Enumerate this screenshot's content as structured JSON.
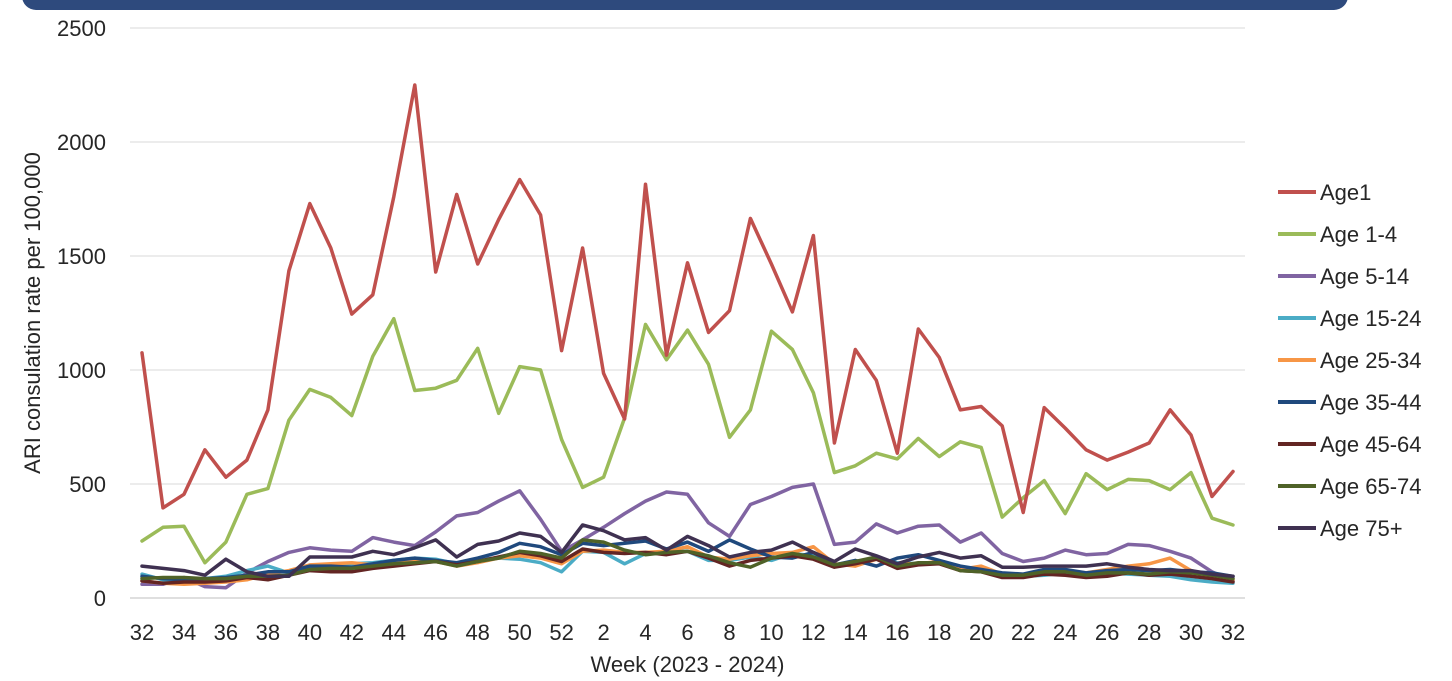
{
  "chart_data": {
    "type": "line",
    "xlabel": "Week (2023 - 2024)",
    "ylabel": "ARI consulation  rate per 100,000",
    "ylim": [
      0,
      2500
    ],
    "yticks": [
      0,
      500,
      1000,
      1500,
      2000,
      2500
    ],
    "grid": true,
    "legend_position": "right",
    "x_tick_labels": [
      "32",
      "34",
      "36",
      "38",
      "40",
      "42",
      "44",
      "46",
      "48",
      "50",
      "52",
      "2",
      "4",
      "6",
      "8",
      "10",
      "12",
      "14",
      "16",
      "18",
      "20",
      "22",
      "24",
      "26",
      "28",
      "30",
      "32"
    ],
    "weeks": [
      "32",
      "33",
      "34",
      "35",
      "36",
      "37",
      "38",
      "39",
      "40",
      "41",
      "42",
      "43",
      "44",
      "45",
      "46",
      "47",
      "48",
      "49",
      "50",
      "51",
      "52",
      "1",
      "2",
      "3",
      "4",
      "5",
      "6",
      "7",
      "8",
      "9",
      "10",
      "11",
      "12",
      "13",
      "14",
      "15",
      "16",
      "17",
      "18",
      "19",
      "20",
      "21",
      "22",
      "23",
      "24",
      "25",
      "26",
      "27",
      "28",
      "29",
      "30",
      "31",
      "32"
    ],
    "series": [
      {
        "name": "Age1",
        "color": "#c0504d",
        "values": [
          1075,
          395,
          455,
          650,
          530,
          605,
          825,
          1435,
          1730,
          1535,
          1245,
          1330,
          1760,
          2250,
          1430,
          1770,
          1465,
          1660,
          1835,
          1680,
          1085,
          1535,
          985,
          785,
          1815,
          1065,
          1470,
          1165,
          1260,
          1665,
          1465,
          1255,
          1590,
          680,
          1090,
          955,
          635,
          1180,
          1055,
          825,
          840,
          755,
          375,
          835,
          745,
          650,
          605,
          640,
          680,
          825,
          715,
          445,
          555
        ]
      },
      {
        "name": "Age 1-4",
        "color": "#9bbb59",
        "values": [
          250,
          310,
          315,
          155,
          245,
          455,
          480,
          780,
          915,
          880,
          800,
          1060,
          1225,
          910,
          920,
          955,
          1095,
          810,
          1015,
          1000,
          695,
          485,
          530,
          790,
          1200,
          1045,
          1175,
          1025,
          705,
          825,
          1170,
          1090,
          900,
          550,
          580,
          635,
          610,
          700,
          620,
          685,
          660,
          355,
          440,
          515,
          370,
          545,
          475,
          520,
          515,
          475,
          550,
          350,
          320
        ]
      },
      {
        "name": "Age 5-14",
        "color": "#8064a2",
        "values": [
          60,
          60,
          90,
          50,
          45,
          110,
          160,
          200,
          220,
          210,
          205,
          265,
          245,
          230,
          290,
          360,
          375,
          425,
          470,
          345,
          205,
          255,
          310,
          370,
          425,
          465,
          455,
          330,
          270,
          410,
          445,
          485,
          500,
          235,
          245,
          325,
          285,
          315,
          320,
          245,
          285,
          195,
          160,
          175,
          210,
          190,
          195,
          235,
          230,
          205,
          175,
          115,
          75
        ]
      },
      {
        "name": "Age 15-24",
        "color": "#4bacc6",
        "values": [
          105,
          80,
          75,
          85,
          95,
          120,
          140,
          110,
          140,
          130,
          150,
          155,
          165,
          175,
          170,
          150,
          170,
          175,
          170,
          155,
          115,
          205,
          200,
          150,
          195,
          200,
          205,
          165,
          165,
          180,
          165,
          195,
          185,
          145,
          145,
          175,
          155,
          150,
          155,
          130,
          130,
          105,
          95,
          100,
          110,
          100,
          110,
          105,
          100,
          95,
          80,
          70,
          65
        ]
      },
      {
        "name": "Age 25-34",
        "color": "#f79646",
        "values": [
          75,
          65,
          60,
          65,
          70,
          80,
          105,
          120,
          145,
          150,
          155,
          145,
          155,
          160,
          160,
          140,
          155,
          175,
          185,
          175,
          150,
          205,
          210,
          200,
          200,
          205,
          225,
          180,
          170,
          185,
          195,
          200,
          225,
          150,
          140,
          170,
          150,
          150,
          160,
          125,
          140,
          105,
          100,
          115,
          120,
          110,
          125,
          140,
          150,
          175,
          120,
          95,
          80
        ]
      },
      {
        "name": "Age 35-44",
        "color": "#1f497d",
        "values": [
          95,
          85,
          80,
          85,
          90,
          100,
          115,
          115,
          140,
          140,
          135,
          150,
          165,
          175,
          165,
          155,
          175,
          200,
          240,
          225,
          190,
          240,
          230,
          240,
          250,
          215,
          245,
          205,
          255,
          215,
          180,
          175,
          200,
          145,
          165,
          140,
          175,
          190,
          165,
          140,
          125,
          110,
          105,
          125,
          125,
          110,
          120,
          125,
          120,
          125,
          115,
          110,
          95
        ]
      },
      {
        "name": "Age 45-64",
        "color": "#632523",
        "values": [
          75,
          65,
          70,
          70,
          75,
          90,
          80,
          100,
          120,
          115,
          115,
          130,
          140,
          150,
          160,
          145,
          160,
          180,
          200,
          185,
          160,
          215,
          200,
          195,
          200,
          190,
          205,
          175,
          140,
          165,
          175,
          185,
          170,
          135,
          150,
          170,
          130,
          145,
          150,
          120,
          115,
          90,
          90,
          105,
          100,
          90,
          95,
          110,
          100,
          105,
          95,
          85,
          70
        ]
      },
      {
        "name": "Age 65-74",
        "color": "#4f6228",
        "values": [
          85,
          90,
          90,
          85,
          85,
          95,
          95,
          100,
          125,
          130,
          130,
          140,
          150,
          155,
          160,
          140,
          160,
          175,
          205,
          195,
          175,
          255,
          245,
          210,
          190,
          200,
          205,
          185,
          155,
          135,
          175,
          195,
          180,
          145,
          160,
          180,
          140,
          155,
          155,
          120,
          115,
          100,
          100,
          115,
          115,
          100,
          110,
          110,
          105,
          115,
          110,
          100,
          85
        ]
      },
      {
        "name": "Age 75+",
        "color": "#3f3151",
        "values": [
          140,
          130,
          120,
          100,
          170,
          115,
          95,
          95,
          180,
          180,
          180,
          205,
          190,
          220,
          255,
          180,
          235,
          250,
          285,
          270,
          200,
          320,
          295,
          255,
          265,
          210,
          270,
          230,
          180,
          200,
          210,
          245,
          200,
          160,
          215,
          185,
          150,
          180,
          200,
          175,
          185,
          135,
          135,
          140,
          140,
          140,
          150,
          135,
          125,
          120,
          120,
          105,
          95
        ]
      }
    ]
  }
}
